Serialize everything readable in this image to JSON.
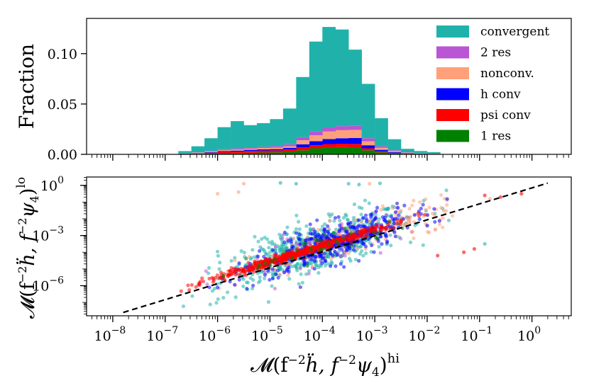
{
  "chart_data": [
    {
      "type": "bar",
      "subtype": "stacked-histogram",
      "ylabel": "Fraction",
      "xscale": "log10",
      "xlim_exp": [
        -8.5,
        0.75
      ],
      "ylim": [
        0,
        0.135
      ],
      "yticks": [
        0.0,
        0.05,
        0.1
      ],
      "ytick_labels": [
        "0.00",
        "0.05",
        "0.10"
      ],
      "legend_position": "top-right",
      "bin_edges_exp": [
        -6.75,
        -6.5,
        -6.25,
        -6.0,
        -5.75,
        -5.5,
        -5.25,
        -5.0,
        -4.75,
        -4.5,
        -4.25,
        -4.0,
        -3.75,
        -3.5,
        -3.25,
        -3.0,
        -2.75,
        -2.5,
        -2.25,
        -2.0,
        -1.75
      ],
      "series": [
        {
          "name": "1 res",
          "color": "#008000",
          "values": [
            0.0003,
            0.0005,
            0.0008,
            0.001,
            0.0012,
            0.0015,
            0.0018,
            0.002,
            0.0025,
            0.004,
            0.006,
            0.007,
            0.0072,
            0.007,
            0.004,
            0.002,
            0.001,
            0.0005,
            0.0003,
            0.0002
          ]
        },
        {
          "name": "psi conv",
          "color": "#ff0000",
          "values": [
            0.0002,
            0.0004,
            0.0008,
            0.0015,
            0.0015,
            0.0018,
            0.002,
            0.002,
            0.0025,
            0.003,
            0.003,
            0.0032,
            0.0033,
            0.0033,
            0.002,
            0.001,
            0.0005,
            0.0003,
            0.0002,
            0.0001
          ]
        },
        {
          "name": "h conv",
          "color": "#0000ff",
          "values": [
            0.0002,
            0.0003,
            0.0005,
            0.0008,
            0.001,
            0.0012,
            0.0012,
            0.0012,
            0.0015,
            0.003,
            0.004,
            0.005,
            0.0055,
            0.006,
            0.003,
            0.0015,
            0.0008,
            0.0004,
            0.0002,
            0.0001
          ]
        },
        {
          "name": "nonconv.",
          "color": "#ffa07a",
          "values": [
            0.0003,
            0.0005,
            0.0008,
            0.001,
            0.0012,
            0.0012,
            0.0013,
            0.0015,
            0.0015,
            0.004,
            0.006,
            0.0075,
            0.008,
            0.008,
            0.004,
            0.002,
            0.001,
            0.0005,
            0.0003,
            0.0002
          ]
        },
        {
          "name": "2 res",
          "color": "#ba55d3",
          "values": [
            0.0001,
            0.0002,
            0.0005,
            0.0007,
            0.001,
            0.001,
            0.0012,
            0.0015,
            0.002,
            0.003,
            0.004,
            0.004,
            0.004,
            0.004,
            0.003,
            0.0015,
            0.0007,
            0.0003,
            0.0002,
            0.0001
          ]
        },
        {
          "name": "convergent",
          "color": "#20b2aa",
          "values": [
            0.0021,
            0.0061,
            0.0126,
            0.022,
            0.0271,
            0.0223,
            0.0235,
            0.0268,
            0.0355,
            0.0598,
            0.089,
            0.0998,
            0.096,
            0.0757,
            0.054,
            0.0279,
            0.011,
            0.0035,
            0.0021,
            0.0015
          ]
        }
      ],
      "legend_order": [
        "convergent",
        "2 res",
        "nonconv.",
        "h conv",
        "psi conv",
        "1 res"
      ]
    },
    {
      "type": "scatter",
      "xlabel": "M(f^-2 ḧ, f^-2 ψ4)^hi",
      "ylabel": "M(f^-2 ḧ, f^-2 ψ4)^lo",
      "xscale": "log10",
      "yscale": "log10",
      "xlim_exp": [
        -8.5,
        0.75
      ],
      "ylim_exp": [
        -7.8,
        0.5
      ],
      "xticks_exp": [
        -8,
        -7,
        -6,
        -5,
        -4,
        -3,
        -2,
        -1,
        0
      ],
      "yticks_exp": [
        -6,
        -3,
        0
      ],
      "reference_line": {
        "style": "dashed",
        "color": "#000000",
        "slope": 1,
        "x_exp_range": [
          -7.8,
          0.3
        ],
        "y_exp_at_start": -7.6
      },
      "clouds": [
        {
          "name": "convergent",
          "color": "#20b2aa",
          "n": 650,
          "x_exp_center": -4.1,
          "x_exp_spread": 0.9,
          "y_scatter": 0.7
        },
        {
          "name": "2 res",
          "color": "#ba55d3",
          "n": 120,
          "x_exp_center": -4.0,
          "x_exp_spread": 0.8,
          "y_scatter": 0.5
        },
        {
          "name": "nonconv.",
          "color": "#ffa07a",
          "n": 160,
          "x_exp_center": -3.2,
          "x_exp_spread": 1.1,
          "y_scatter": 0.6
        },
        {
          "name": "h conv",
          "color": "#0000ff",
          "n": 420,
          "x_exp_center": -3.8,
          "x_exp_spread": 0.75,
          "y_scatter": 0.55
        },
        {
          "name": "psi conv",
          "color": "#ff0000",
          "n": 520,
          "x_exp_center": -4.4,
          "x_exp_spread": 0.9,
          "y_scatter": 0.12
        },
        {
          "name": "1 res",
          "color": "#008000",
          "n": 40,
          "x_exp_center": -4.0,
          "x_exp_spread": 0.7,
          "y_scatter": 0.4
        }
      ],
      "outliers": [
        {
          "color": "#20b2aa",
          "x_exp": -4.5,
          "y_exp": 0.1
        },
        {
          "color": "#20b2aa",
          "x_exp": -4.8,
          "y_exp": 0.15
        },
        {
          "color": "#20b2aa",
          "x_exp": -3.5,
          "y_exp": 0.1
        },
        {
          "color": "#20b2aa",
          "x_exp": -3.3,
          "y_exp": 0.05
        },
        {
          "color": "#20b2aa",
          "x_exp": -2.9,
          "y_exp": 0.12
        },
        {
          "color": "#ffa07a",
          "x_exp": -5.5,
          "y_exp": 0.1
        },
        {
          "color": "#ffa07a",
          "x_exp": -5.6,
          "y_exp": -0.4
        },
        {
          "color": "#ffa07a",
          "x_exp": -6.0,
          "y_exp": -0.5
        },
        {
          "color": "#ffa07a",
          "x_exp": -3.1,
          "y_exp": 0.1
        },
        {
          "color": "#ffa07a",
          "x_exp": -0.8,
          "y_exp": -0.8
        },
        {
          "color": "#ff0000",
          "x_exp": -0.6,
          "y_exp": -0.7
        },
        {
          "color": "#ff0000",
          "x_exp": -0.9,
          "y_exp": -0.6
        },
        {
          "color": "#ff0000",
          "x_exp": -1.8,
          "y_exp": -4.2
        },
        {
          "color": "#ff0000",
          "x_exp": -1.3,
          "y_exp": -4.0
        },
        {
          "color": "#ff0000",
          "x_exp": -1.1,
          "y_exp": -3.8
        },
        {
          "color": "#ff0000",
          "x_exp": -0.2,
          "y_exp": -0.5
        },
        {
          "color": "#20b2aa",
          "x_exp": -0.9,
          "y_exp": -3.5
        }
      ]
    }
  ],
  "ytick_labels_bottom": {
    "-6": "10",
    "-3": "10",
    "0": "10"
  },
  "xtick_base": "10",
  "labels": {
    "top_ylabel": "Fraction",
    "legend": [
      "convergent",
      "2 res",
      "nonconv.",
      "h conv",
      "psi conv",
      "1 res"
    ],
    "ytick_top": [
      "0.00",
      "0.05",
      "0.10"
    ],
    "xlabel_main": "𝓜(f",
    "xlabel_exp1": "−2",
    "xlabel_mid": "ḧ, f",
    "xlabel_exp2": "−2",
    "xlabel_end": "ψ",
    "xlabel_sub": "4",
    "xlabel_close": ")",
    "xlabel_sup": "hi",
    "ylabel_sup": "lo"
  }
}
